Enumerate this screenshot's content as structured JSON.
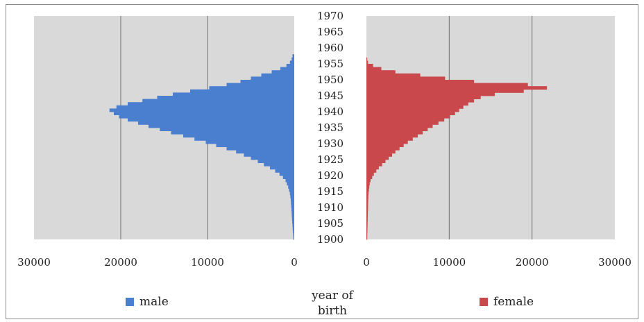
{
  "chart_data": {
    "type": "bar",
    "orientation": "horizontal-population-pyramid",
    "axis_title": {
      "line1": "year of",
      "line2": "birth"
    },
    "y_ticks": [
      "1970",
      "1965",
      "1960",
      "1955",
      "1950",
      "1945",
      "1940",
      "1935",
      "1930",
      "1925",
      "1920",
      "1915",
      "1910",
      "1905",
      "1900"
    ],
    "y_range": [
      1900,
      1970
    ],
    "grid": true,
    "legend_placement": "bottom",
    "panels": [
      {
        "name": "male",
        "color": "#4a7fd0",
        "direction": "left",
        "x_ticks": [
          "30000",
          "20000",
          "10000",
          "0"
        ],
        "x_range": [
          0,
          30000
        ],
        "bins": [
          {
            "y": 1900,
            "value": 100
          },
          {
            "y": 1901,
            "value": 120
          },
          {
            "y": 1902,
            "value": 150
          },
          {
            "y": 1903,
            "value": 180
          },
          {
            "y": 1904,
            "value": 200
          },
          {
            "y": 1905,
            "value": 230
          },
          {
            "y": 1906,
            "value": 260
          },
          {
            "y": 1907,
            "value": 280
          },
          {
            "y": 1908,
            "value": 300
          },
          {
            "y": 1909,
            "value": 320
          },
          {
            "y": 1910,
            "value": 350
          },
          {
            "y": 1911,
            "value": 380
          },
          {
            "y": 1912,
            "value": 400
          },
          {
            "y": 1913,
            "value": 450
          },
          {
            "y": 1914,
            "value": 500
          },
          {
            "y": 1915,
            "value": 600
          },
          {
            "y": 1916,
            "value": 700
          },
          {
            "y": 1917,
            "value": 850
          },
          {
            "y": 1918,
            "value": 1000
          },
          {
            "y": 1919,
            "value": 1300
          },
          {
            "y": 1920,
            "value": 1700
          },
          {
            "y": 1921,
            "value": 2200
          },
          {
            "y": 1922,
            "value": 2800
          },
          {
            "y": 1923,
            "value": 3500
          },
          {
            "y": 1924,
            "value": 4200
          },
          {
            "y": 1925,
            "value": 5000
          },
          {
            "y": 1926,
            "value": 5800
          },
          {
            "y": 1927,
            "value": 6700
          },
          {
            "y": 1928,
            "value": 7800
          },
          {
            "y": 1929,
            "value": 9000
          },
          {
            "y": 1930,
            "value": 10200
          },
          {
            "y": 1931,
            "value": 11500
          },
          {
            "y": 1932,
            "value": 12800
          },
          {
            "y": 1933,
            "value": 14200
          },
          {
            "y": 1934,
            "value": 15500
          },
          {
            "y": 1935,
            "value": 16800
          },
          {
            "y": 1936,
            "value": 18000
          },
          {
            "y": 1937,
            "value": 19200
          },
          {
            "y": 1938,
            "value": 20200
          },
          {
            "y": 1939,
            "value": 20800
          },
          {
            "y": 1940,
            "value": 21300
          },
          {
            "y": 1941,
            "value": 20500
          },
          {
            "y": 1942,
            "value": 19200
          },
          {
            "y": 1943,
            "value": 17500
          },
          {
            "y": 1944,
            "value": 15800
          },
          {
            "y": 1945,
            "value": 14000
          },
          {
            "y": 1946,
            "value": 12000
          },
          {
            "y": 1947,
            "value": 9800
          },
          {
            "y": 1948,
            "value": 7800
          },
          {
            "y": 1949,
            "value": 6200
          },
          {
            "y": 1950,
            "value": 5000
          },
          {
            "y": 1951,
            "value": 3800
          },
          {
            "y": 1952,
            "value": 2600
          },
          {
            "y": 1953,
            "value": 1600
          },
          {
            "y": 1954,
            "value": 900
          },
          {
            "y": 1955,
            "value": 500
          },
          {
            "y": 1956,
            "value": 300
          },
          {
            "y": 1957,
            "value": 200
          },
          {
            "y": 1958,
            "value": 0
          },
          {
            "y": 1959,
            "value": 0
          }
        ]
      },
      {
        "name": "female",
        "color": "#c9484b",
        "direction": "right",
        "x_ticks": [
          "0",
          "10000",
          "20000",
          "30000"
        ],
        "x_range": [
          0,
          30000
        ],
        "bins": [
          {
            "y": 1900,
            "value": 100
          },
          {
            "y": 1901,
            "value": 110
          },
          {
            "y": 1902,
            "value": 120
          },
          {
            "y": 1903,
            "value": 130
          },
          {
            "y": 1904,
            "value": 140
          },
          {
            "y": 1905,
            "value": 150
          },
          {
            "y": 1906,
            "value": 160
          },
          {
            "y": 1907,
            "value": 170
          },
          {
            "y": 1908,
            "value": 180
          },
          {
            "y": 1909,
            "value": 190
          },
          {
            "y": 1910,
            "value": 200
          },
          {
            "y": 1911,
            "value": 210
          },
          {
            "y": 1912,
            "value": 220
          },
          {
            "y": 1913,
            "value": 230
          },
          {
            "y": 1914,
            "value": 250
          },
          {
            "y": 1915,
            "value": 300
          },
          {
            "y": 1916,
            "value": 350
          },
          {
            "y": 1917,
            "value": 400
          },
          {
            "y": 1918,
            "value": 500
          },
          {
            "y": 1919,
            "value": 700
          },
          {
            "y": 1920,
            "value": 900
          },
          {
            "y": 1921,
            "value": 1200
          },
          {
            "y": 1922,
            "value": 1500
          },
          {
            "y": 1923,
            "value": 1900
          },
          {
            "y": 1924,
            "value": 2300
          },
          {
            "y": 1925,
            "value": 2700
          },
          {
            "y": 1926,
            "value": 3100
          },
          {
            "y": 1927,
            "value": 3500
          },
          {
            "y": 1928,
            "value": 4000
          },
          {
            "y": 1929,
            "value": 4500
          },
          {
            "y": 1930,
            "value": 5000
          },
          {
            "y": 1931,
            "value": 5600
          },
          {
            "y": 1932,
            "value": 6200
          },
          {
            "y": 1933,
            "value": 6800
          },
          {
            "y": 1934,
            "value": 7400
          },
          {
            "y": 1935,
            "value": 8000
          },
          {
            "y": 1936,
            "value": 8700
          },
          {
            "y": 1937,
            "value": 9400
          },
          {
            "y": 1938,
            "value": 10100
          },
          {
            "y": 1939,
            "value": 10700
          },
          {
            "y": 1940,
            "value": 11200
          },
          {
            "y": 1941,
            "value": 11700
          },
          {
            "y": 1942,
            "value": 12300
          },
          {
            "y": 1943,
            "value": 13000
          },
          {
            "y": 1944,
            "value": 13800
          },
          {
            "y": 1945,
            "value": 15500
          },
          {
            "y": 1946,
            "value": 19000
          },
          {
            "y": 1947,
            "value": 21800
          },
          {
            "y": 1948,
            "value": 19500
          },
          {
            "y": 1949,
            "value": 13000
          },
          {
            "y": 1950,
            "value": 9500
          },
          {
            "y": 1951,
            "value": 6500
          },
          {
            "y": 1952,
            "value": 3500
          },
          {
            "y": 1953,
            "value": 1800
          },
          {
            "y": 1954,
            "value": 800
          },
          {
            "y": 1955,
            "value": 200
          },
          {
            "y": 1956,
            "value": 100
          },
          {
            "y": 1957,
            "value": 0
          },
          {
            "y": 1958,
            "value": 0
          },
          {
            "y": 1959,
            "value": 0
          }
        ]
      }
    ],
    "legend": [
      {
        "label": "male",
        "color": "#4a7fd0"
      },
      {
        "label": "female",
        "color": "#c9484b"
      }
    ]
  },
  "colors": {
    "plot_background": "#d9d9d9",
    "gridline": "#6e6e6e",
    "frame_border": "#8a8a8a"
  }
}
